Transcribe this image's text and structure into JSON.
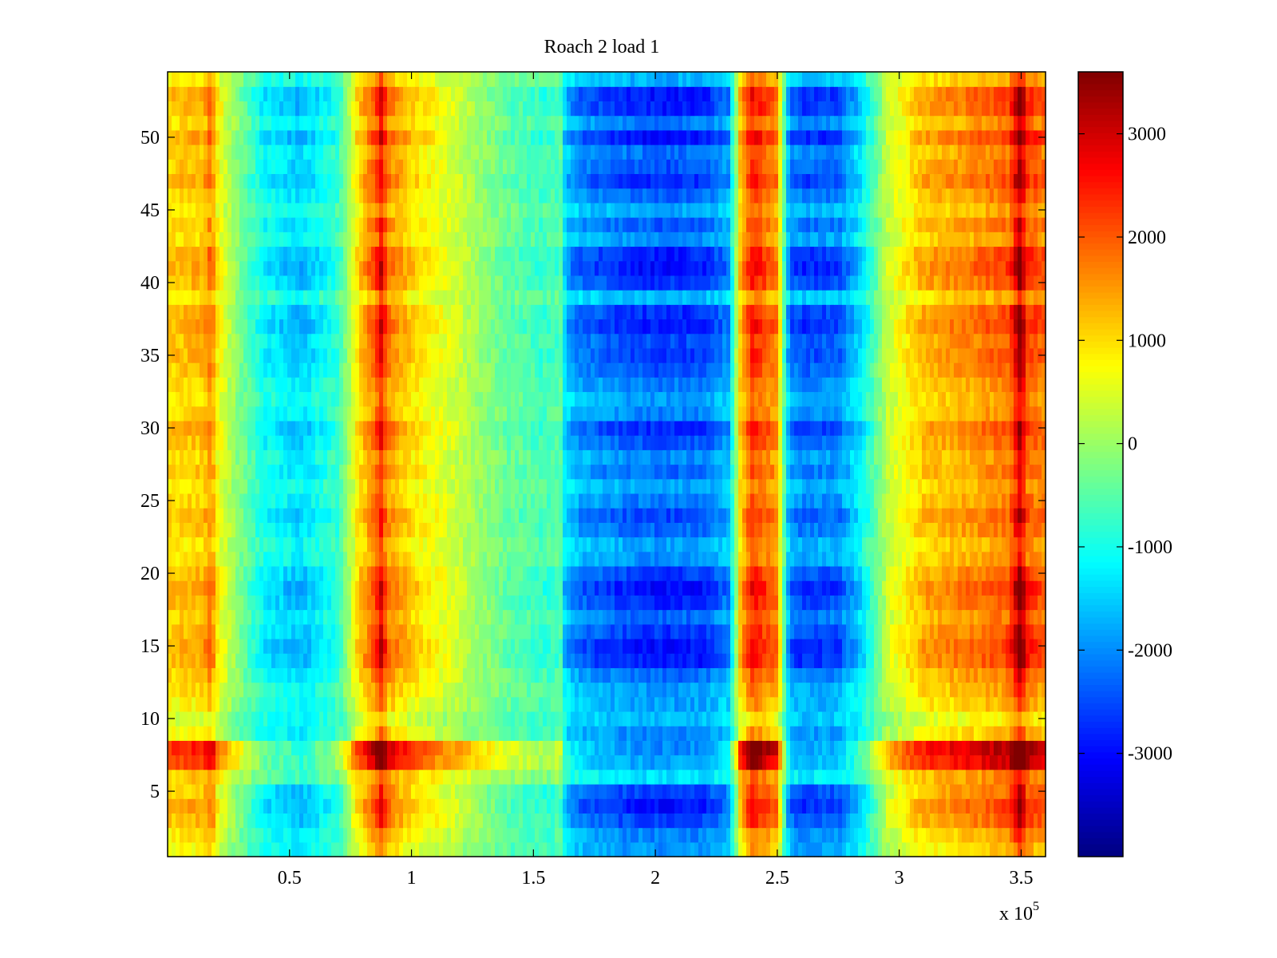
{
  "chart_data": {
    "type": "heatmap",
    "title": "Roach 2 load 1",
    "xlabel": "",
    "ylabel": "",
    "x_multiplier_label": {
      "prefix": "x 10",
      "exponent": "5"
    },
    "xlim": [
      0,
      3.6
    ],
    "ylim": [
      0.5,
      54.5
    ],
    "x_ticks": [
      0.5,
      1,
      1.5,
      2,
      2.5,
      3,
      3.5
    ],
    "x_tick_labels": [
      "0.5",
      "1",
      "1.5",
      "2",
      "2.5",
      "3",
      "3.5"
    ],
    "y_ticks": [
      5,
      10,
      15,
      20,
      25,
      30,
      35,
      40,
      45,
      50
    ],
    "y_tick_labels": [
      "5",
      "10",
      "15",
      "20",
      "25",
      "30",
      "35",
      "40",
      "45",
      "50"
    ],
    "colorbar": {
      "colormap": "jet",
      "clim": [
        -4000,
        3600
      ],
      "ticks": [
        3000,
        2000,
        1000,
        0,
        -1000,
        -2000,
        -3000
      ],
      "tick_labels": [
        "3000",
        "2000",
        "1000",
        "0",
        "-1000",
        "-2000",
        "-3000"
      ]
    },
    "rows": 54,
    "column_profile": {
      "x": [
        0,
        0.15,
        0.18,
        0.2,
        0.3,
        0.4,
        0.55,
        0.7,
        0.78,
        0.85,
        0.88,
        0.9,
        1.0,
        1.2,
        1.4,
        1.55,
        1.62,
        1.63,
        1.7,
        1.9,
        2.05,
        2.2,
        2.3,
        2.35,
        2.4,
        2.5,
        2.55,
        2.6,
        2.75,
        2.85,
        2.95,
        3.1,
        3.3,
        3.45,
        3.5,
        3.52,
        3.6
      ],
      "values": [
        1000,
        1200,
        1700,
        800,
        -300,
        -1300,
        -1700,
        -900,
        900,
        1800,
        2600,
        1600,
        1000,
        300,
        -500,
        -800,
        -600,
        -1800,
        -2300,
        -2700,
        -2800,
        -2700,
        -2100,
        1200,
        2200,
        1500,
        -2300,
        -2600,
        -2500,
        -1400,
        300,
        1200,
        1500,
        1800,
        3200,
        2000,
        1700
      ]
    },
    "row_modulation": [
      0.3,
      0.6,
      1.4,
      1.8,
      1.3,
      0.2,
      1.6,
      1.9,
      0.4,
      -0.2,
      0.3,
      0.5,
      1.0,
      1.8,
      1.9,
      1.5,
      1.0,
      1.6,
      1.9,
      1.4,
      0.6,
      0.4,
      1.0,
      1.3,
      0.8,
      0.4,
      1.0,
      0.6,
      1.2,
      1.6,
      0.7,
      0.5,
      0.8,
      1.2,
      1.5,
      1.3,
      1.8,
      1.6,
      0.2,
      1.5,
      1.9,
      1.7,
      0.6,
      1.1,
      0.4,
      1.0,
      1.6,
      1.2,
      0.9,
      1.9,
      0.8,
      1.7,
      1.8,
      0.3
    ],
    "row_offset": [
      -200,
      -100,
      0,
      0,
      -100,
      300,
      900,
      1000,
      -200,
      -300,
      -100,
      0,
      0,
      0,
      0,
      0,
      0,
      0,
      0,
      0,
      0,
      0,
      0,
      0,
      0,
      0,
      0,
      0,
      0,
      0,
      0,
      0,
      0,
      0,
      0,
      0,
      0,
      0,
      0,
      0,
      0,
      0,
      0,
      0,
      0,
      0,
      0,
      0,
      0,
      0,
      0,
      0,
      0,
      0
    ]
  }
}
